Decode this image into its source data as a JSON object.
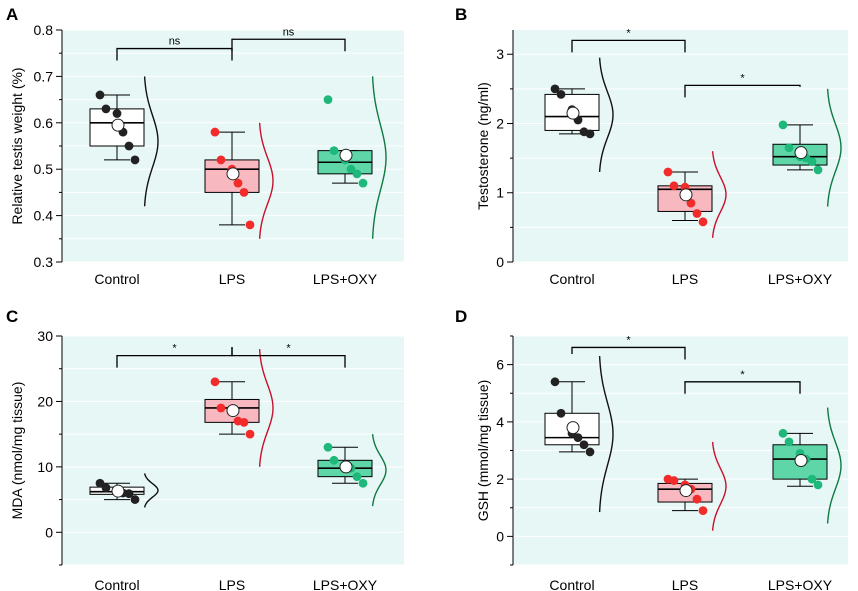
{
  "colors": {
    "panel_bg": "#e7f7f6",
    "grid": "#ffffff",
    "bracket": "#000000",
    "groups": [
      {
        "fill": "#ffffff",
        "dot": "#222222",
        "curve": "#111111",
        "mean": "#ffffff"
      },
      {
        "fill": "#f7b8bf",
        "dot": "#f22b2b",
        "curve": "#c8102e",
        "mean": "#ffffff"
      },
      {
        "fill": "#5fd6a8",
        "dot": "#1db87a",
        "curve": "#0f7a40",
        "mean": "#ffffff"
      }
    ]
  },
  "chart_data": [
    {
      "panel": "A",
      "type": "box",
      "ylabel": "Relative testis weight (%)",
      "categories": [
        "Control",
        "LPS",
        "LPS+OXY"
      ],
      "ylim": [
        0.3,
        0.8
      ],
      "yticks": [
        0.3,
        0.4,
        0.5,
        0.6,
        0.7,
        0.8
      ],
      "tick_labels": [
        "0.3",
        "0.4",
        "0.5",
        "0.6",
        "0.7",
        "0.8"
      ],
      "groups": [
        {
          "q1": 0.55,
          "median": 0.6,
          "q3": 0.63,
          "whisker_low": 0.52,
          "whisker_high": 0.66,
          "mean": 0.595,
          "points": [
            0.66,
            0.63,
            0.62,
            0.58,
            0.55,
            0.52
          ],
          "density_range": [
            0.42,
            0.7
          ]
        },
        {
          "q1": 0.45,
          "median": 0.5,
          "q3": 0.52,
          "whisker_low": 0.38,
          "whisker_high": 0.58,
          "mean": 0.49,
          "points": [
            0.58,
            0.52,
            0.5,
            0.47,
            0.45,
            0.38
          ],
          "density_range": [
            0.35,
            0.6
          ]
        },
        {
          "q1": 0.49,
          "median": 0.515,
          "q3": 0.54,
          "whisker_low": 0.47,
          "whisker_high": 0.54,
          "mean": 0.53,
          "points": [
            0.65,
            0.54,
            0.52,
            0.5,
            0.49,
            0.47
          ],
          "density_range": [
            0.35,
            0.7
          ]
        }
      ],
      "comparisons": [
        {
          "from": 0,
          "to": 1,
          "label": "ns",
          "y": 0.76
        },
        {
          "from": 1,
          "to": 2,
          "label": "ns",
          "y": 0.78
        }
      ]
    },
    {
      "panel": "B",
      "type": "box",
      "ylabel": "Testosterone (ng/ml)",
      "categories": [
        "Control",
        "LPS",
        "LPS+OXY"
      ],
      "ylim": [
        0,
        3.35
      ],
      "yticks": [
        0,
        1,
        2,
        3
      ],
      "tick_labels": [
        "0",
        "1",
        "2",
        "3"
      ],
      "groups": [
        {
          "q1": 1.9,
          "median": 2.1,
          "q3": 2.42,
          "whisker_low": 1.85,
          "whisker_high": 2.5,
          "mean": 2.15,
          "points": [
            2.5,
            2.42,
            2.2,
            2.05,
            1.88,
            1.85
          ],
          "density_range": [
            1.3,
            2.95
          ]
        },
        {
          "q1": 0.73,
          "median": 1.05,
          "q3": 1.1,
          "whisker_low": 0.6,
          "whisker_high": 1.3,
          "mean": 0.97,
          "points": [
            1.3,
            1.1,
            1.08,
            0.85,
            0.7,
            0.58
          ],
          "density_range": [
            0.35,
            1.6
          ]
        },
        {
          "q1": 1.4,
          "median": 1.52,
          "q3": 1.7,
          "whisker_low": 1.33,
          "whisker_high": 1.98,
          "mean": 1.58,
          "points": [
            1.98,
            1.65,
            1.52,
            1.5,
            1.45,
            1.33
          ],
          "density_range": [
            0.8,
            2.5
          ]
        }
      ],
      "comparisons": [
        {
          "from": 0,
          "to": 1,
          "label": "*",
          "y": 3.2
        },
        {
          "from": 1,
          "to": 2,
          "label": "*",
          "y": 2.55
        }
      ]
    },
    {
      "panel": "C",
      "type": "box",
      "ylabel": "MDA (nmol/mg tissue)",
      "categories": [
        "Control",
        "LPS",
        "LPS+OXY"
      ],
      "ylim": [
        -5,
        30
      ],
      "yticks": [
        0,
        10,
        20,
        30
      ],
      "tick_labels": [
        "0",
        "10",
        "20",
        "30"
      ],
      "groups": [
        {
          "q1": 5.8,
          "median": 6.2,
          "q3": 6.9,
          "whisker_low": 5.0,
          "whisker_high": 7.5,
          "mean": 6.3,
          "points": [
            7.5,
            6.8,
            6.2,
            6.0,
            5.9,
            5.0
          ],
          "density_range": [
            3.8,
            9.0
          ]
        },
        {
          "q1": 16.8,
          "median": 19.0,
          "q3": 20.3,
          "whisker_low": 15.0,
          "whisker_high": 23.0,
          "mean": 18.6,
          "points": [
            23.0,
            19.0,
            18.8,
            17.0,
            16.8,
            15.0
          ],
          "density_range": [
            10.0,
            28.0
          ]
        },
        {
          "q1": 8.5,
          "median": 9.8,
          "q3": 11.0,
          "whisker_low": 7.5,
          "whisker_high": 13.0,
          "mean": 10.0,
          "points": [
            13.0,
            11.0,
            10.0,
            9.8,
            8.5,
            7.5
          ],
          "density_range": [
            4.0,
            15.0
          ]
        }
      ],
      "comparisons": [
        {
          "from": 0,
          "to": 1,
          "label": "*",
          "y": 27.0
        },
        {
          "from": 1,
          "to": 2,
          "label": "*",
          "y": 27.0
        }
      ]
    },
    {
      "panel": "D",
      "type": "box",
      "ylabel": "GSH (mmol/mg tissue)",
      "categories": [
        "Control",
        "LPS",
        "LPS+OXY"
      ],
      "ylim": [
        -1,
        7
      ],
      "yticks": [
        0,
        2,
        4,
        6
      ],
      "tick_labels": [
        "0",
        "2",
        "4",
        "6"
      ],
      "groups": [
        {
          "q1": 3.2,
          "median": 3.45,
          "q3": 4.3,
          "whisker_low": 2.95,
          "whisker_high": 5.4,
          "mean": 3.8,
          "points": [
            5.4,
            4.3,
            3.6,
            3.45,
            3.2,
            2.95
          ],
          "density_range": [
            0.85,
            6.3
          ]
        },
        {
          "q1": 1.2,
          "median": 1.65,
          "q3": 1.85,
          "whisker_low": 0.9,
          "whisker_high": 2.0,
          "mean": 1.6,
          "points": [
            2.0,
            1.95,
            1.8,
            1.65,
            1.3,
            0.9
          ],
          "density_range": [
            0.2,
            3.3
          ]
        },
        {
          "q1": 2.0,
          "median": 2.7,
          "q3": 3.2,
          "whisker_low": 1.75,
          "whisker_high": 3.6,
          "mean": 2.65,
          "points": [
            3.6,
            3.3,
            2.9,
            2.7,
            2.0,
            1.8
          ],
          "density_range": [
            0.45,
            4.5
          ]
        }
      ],
      "comparisons": [
        {
          "from": 0,
          "to": 1,
          "label": "*",
          "y": 6.6
        },
        {
          "from": 1,
          "to": 2,
          "label": "*",
          "y": 5.4
        }
      ]
    }
  ]
}
